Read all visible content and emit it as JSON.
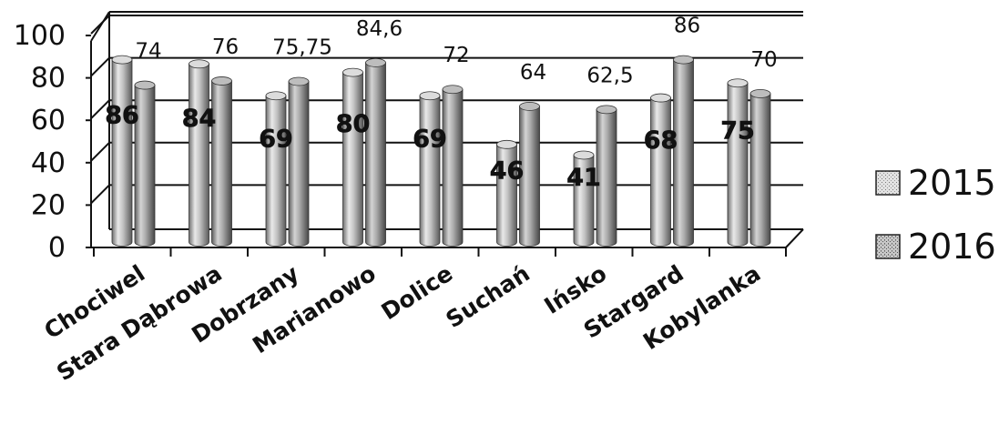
{
  "chart_data": {
    "type": "bar",
    "style": "3d-cylinder",
    "categories": [
      "Chociwel",
      "Stara Dąbrowa",
      "Dobrzany",
      "Marianowo",
      "Dolice",
      "Suchań",
      "Ińsko",
      "Stargard",
      "Kobylanka"
    ],
    "series": [
      {
        "name": "2015",
        "values": [
          86,
          84,
          69,
          80,
          69,
          46,
          41,
          68,
          75
        ],
        "labels": [
          "86",
          "84",
          "69",
          "80",
          "69",
          "46",
          "41",
          "68",
          "75"
        ],
        "color": "#bdbdbd"
      },
      {
        "name": "2016",
        "values": [
          74,
          76,
          75.75,
          84.6,
          72,
          64,
          62.5,
          86,
          70
        ],
        "labels": [
          "74",
          "76",
          "75,75",
          "84,6",
          "72",
          "64",
          "62,5",
          "86",
          "70"
        ],
        "color": "#a2a2a2"
      }
    ],
    "yticks": [
      "0",
      "20",
      "40",
      "60",
      "80",
      "100"
    ],
    "ylim": [
      0,
      100
    ],
    "grid": true,
    "legend": "right"
  }
}
